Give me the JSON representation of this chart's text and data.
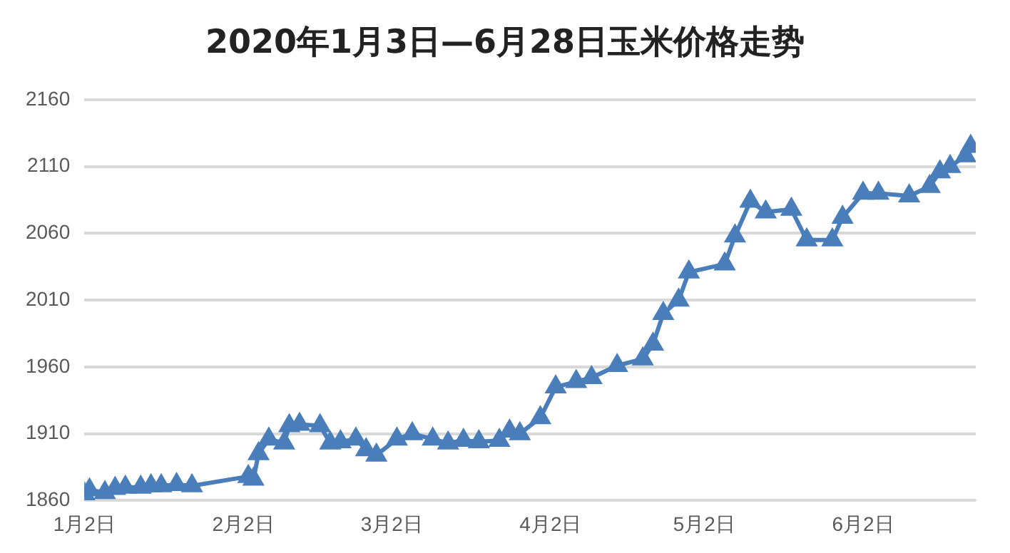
{
  "chart_data": {
    "type": "line",
    "title": "2020年1月3日—6月28日玉米价格走势",
    "x": [
      "2020-01-02",
      "2020-01-03",
      "2020-01-06",
      "2020-01-08",
      "2020-01-10",
      "2020-01-13",
      "2020-01-15",
      "2020-01-17",
      "2020-01-20",
      "2020-01-23",
      "2020-02-03",
      "2020-02-04",
      "2020-02-05",
      "2020-02-07",
      "2020-02-10",
      "2020-02-11",
      "2020-02-13",
      "2020-02-17",
      "2020-02-19",
      "2020-02-21",
      "2020-02-24",
      "2020-02-26",
      "2020-02-28",
      "2020-03-03",
      "2020-03-06",
      "2020-03-10",
      "2020-03-13",
      "2020-03-16",
      "2020-03-19",
      "2020-03-23",
      "2020-03-25",
      "2020-03-27",
      "2020-03-31",
      "2020-04-03",
      "2020-04-07",
      "2020-04-10",
      "2020-04-15",
      "2020-04-20",
      "2020-04-22",
      "2020-04-24",
      "2020-04-27",
      "2020-04-29",
      "2020-05-06",
      "2020-05-08",
      "2020-05-11",
      "2020-05-14",
      "2020-05-19",
      "2020-05-22",
      "2020-05-27",
      "2020-05-29",
      "2020-06-02",
      "2020-06-05",
      "2020-06-11",
      "2020-06-15",
      "2020-06-17",
      "2020-06-19",
      "2020-06-22",
      "2020-06-23"
    ],
    "values": [
      1865,
      1868,
      1866,
      1869,
      1870,
      1870,
      1871,
      1871,
      1872,
      1871,
      1878,
      1876,
      1895,
      1906,
      1903,
      1916,
      1917,
      1916,
      1903,
      1904,
      1906,
      1898,
      1894,
      1906,
      1910,
      1906,
      1903,
      1905,
      1904,
      1905,
      1912,
      1910,
      1922,
      1945,
      1949,
      1952,
      1961,
      1966,
      1977,
      2000,
      2010,
      2031,
      2037,
      2058,
      2084,
      2076,
      2078,
      2055,
      2055,
      2072,
      2090,
      2090,
      2088,
      2095,
      2106,
      2110,
      2118,
      2125
    ],
    "color": "#4a7ebb",
    "xlim": [
      "2020-01-02",
      "2020-06-24"
    ],
    "xticks": [
      {
        "value": "2020-01-02",
        "label": "1月2日"
      },
      {
        "value": "2020-02-02",
        "label": "2月2日"
      },
      {
        "value": "2020-03-02",
        "label": "3月2日"
      },
      {
        "value": "2020-04-02",
        "label": "4月2日"
      },
      {
        "value": "2020-05-02",
        "label": "5月2日"
      },
      {
        "value": "2020-06-02",
        "label": "6月2日"
      }
    ],
    "ylim": [
      1860,
      2160
    ],
    "yticks": [
      1860,
      1910,
      1960,
      2010,
      2060,
      2110,
      2160
    ],
    "grid": "y",
    "marker": "triangle",
    "line_style": "solid",
    "legend": false
  }
}
